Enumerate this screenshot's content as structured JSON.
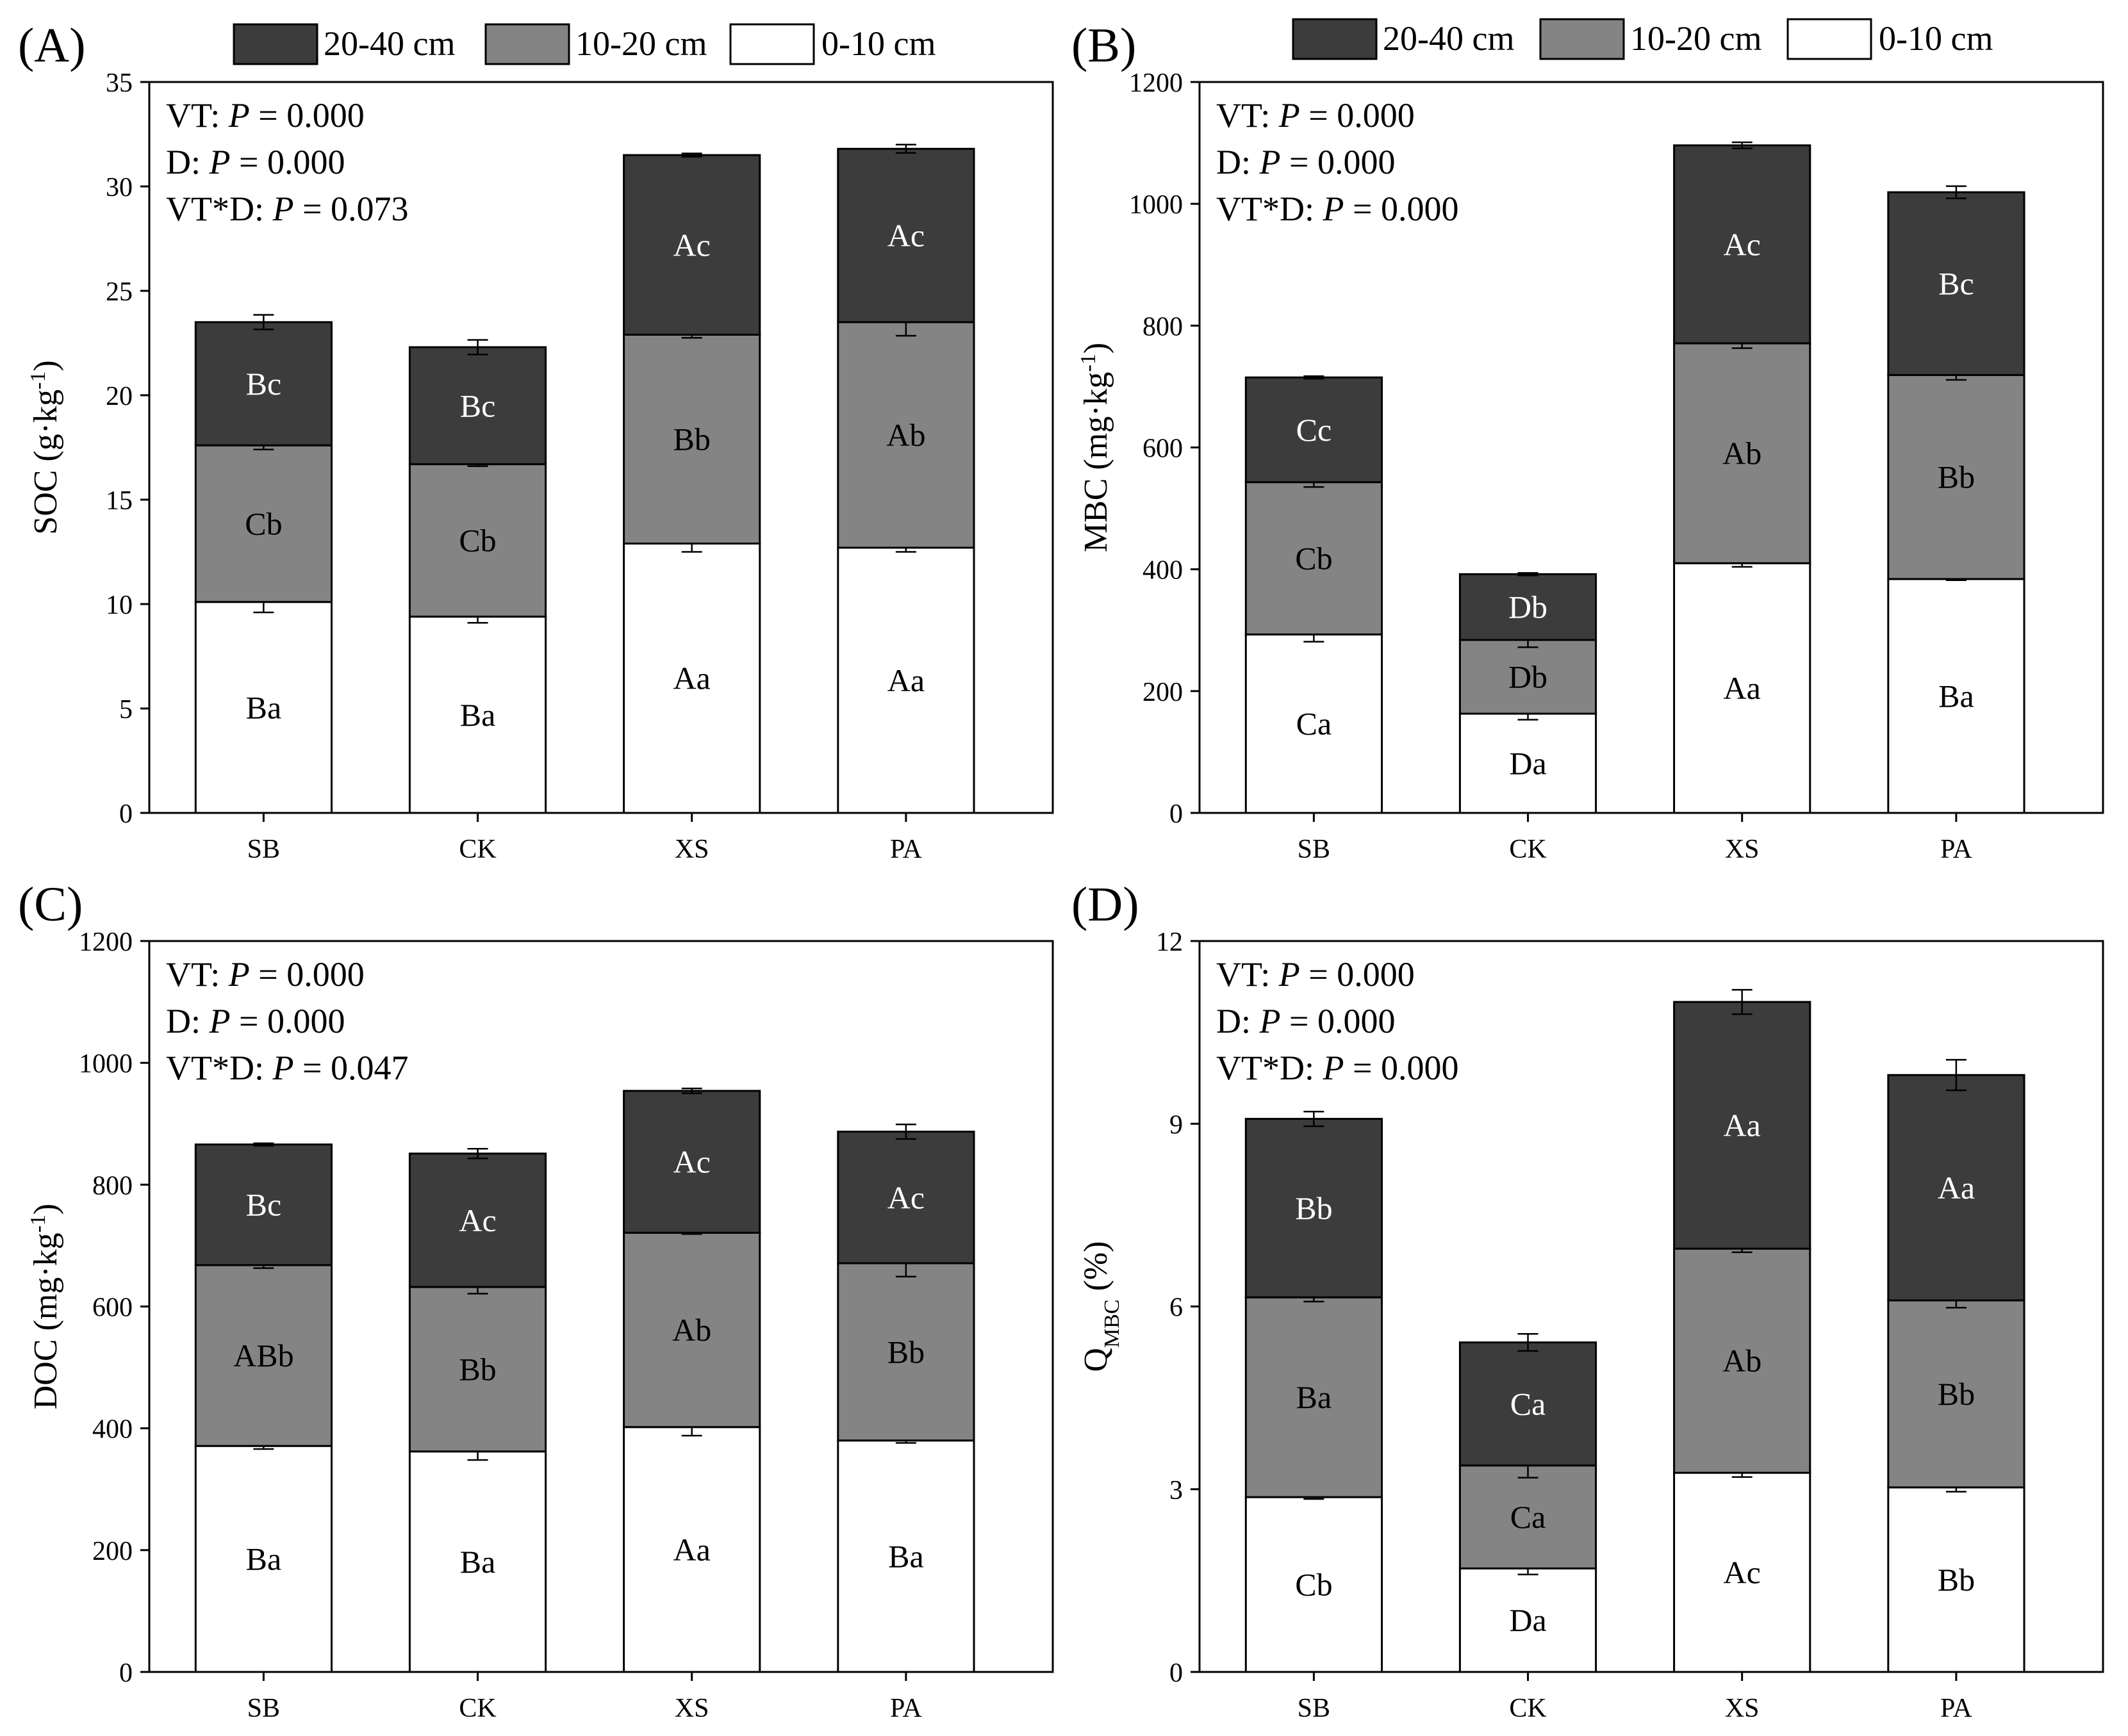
{
  "colors": {
    "deep": "#3c3c3c",
    "middle": "#848484",
    "surface": "#ffffff",
    "deep_text": "#ffffff",
    "middle_text": "#000000",
    "surface_text": "#000000"
  },
  "legend": {
    "entries": [
      {
        "key": "deep",
        "label": "20-40 cm"
      },
      {
        "key": "middle",
        "label": "10-20 cm"
      },
      {
        "key": "surface",
        "label": "0-10 cm"
      }
    ]
  },
  "chart_data": [
    {
      "panel": "(A)",
      "type": "bar",
      "stacked": true,
      "ylabel_main": "SOC (g·kg",
      "ylabel_sup": "-1",
      "ylabel_tail": ")",
      "ylim": [
        0,
        35
      ],
      "yticks": [
        0,
        5,
        10,
        15,
        20,
        25,
        30,
        35
      ],
      "categories": [
        "SB",
        "CK",
        "XS",
        "PA"
      ],
      "stats": [
        {
          "prefix": "VT: ",
          "italic": "P",
          "suffix": " = 0.000"
        },
        {
          "prefix": "D: ",
          "italic": "P",
          "suffix": " = 0.000"
        },
        {
          "prefix": "VT*D: ",
          "italic": "P",
          "suffix": " = 0.073"
        }
      ],
      "series": [
        {
          "name": "0-10 cm",
          "key": "surface",
          "values": [
            10.1,
            9.4,
            12.9,
            12.7
          ],
          "errors": [
            0.5,
            0.3,
            0.4,
            0.2
          ],
          "letters": [
            "Ba",
            "Ba",
            "Aa",
            "Aa"
          ]
        },
        {
          "name": "10-20 cm",
          "key": "middle",
          "values": [
            7.5,
            7.3,
            10.0,
            10.8
          ],
          "errors": [
            0.2,
            0.1,
            0.15,
            0.65
          ],
          "letters": [
            "Cb",
            "Cb",
            "Bb",
            "Ab"
          ]
        },
        {
          "name": "20-40 cm",
          "key": "deep",
          "values": [
            5.9,
            5.6,
            8.6,
            8.3
          ],
          "errors": [
            0.35,
            0.35,
            0.08,
            0.2
          ],
          "letters": [
            "Bc",
            "Bc",
            "Ac",
            "Ac"
          ]
        }
      ]
    },
    {
      "panel": "(B)",
      "type": "bar",
      "stacked": true,
      "ylabel_main": "MBC (mg·kg",
      "ylabel_sup": "-1",
      "ylabel_tail": ")",
      "ylim": [
        0,
        1200
      ],
      "yticks": [
        0,
        200,
        400,
        600,
        800,
        1000,
        1200
      ],
      "categories": [
        "SB",
        "CK",
        "XS",
        "PA"
      ],
      "stats": [
        {
          "prefix": "VT: ",
          "italic": "P",
          "suffix": " = 0.000"
        },
        {
          "prefix": "D: ",
          "italic": "P",
          "suffix": " = 0.000"
        },
        {
          "prefix": "VT*D: ",
          "italic": "P",
          "suffix": " = 0.000"
        }
      ],
      "series": [
        {
          "name": "0-10 cm",
          "key": "surface",
          "values": [
            293,
            163,
            410,
            384
          ],
          "errors": [
            12,
            10,
            6,
            2
          ],
          "letters": [
            "Ca",
            "Da",
            "Aa",
            "Ba"
          ]
        },
        {
          "name": "10-20 cm",
          "key": "middle",
          "values": [
            250,
            121,
            361,
            335
          ],
          "errors": [
            8,
            12,
            8,
            8
          ],
          "letters": [
            "Cb",
            "Db",
            "Ab",
            "Bb"
          ]
        },
        {
          "name": "20-40 cm",
          "key": "deep",
          "values": [
            172,
            108,
            325,
            300
          ],
          "errors": [
            2,
            2,
            5,
            10
          ],
          "letters": [
            "Cc",
            "Db",
            "Ac",
            "Bc"
          ]
        }
      ]
    },
    {
      "panel": "(C)",
      "type": "bar",
      "stacked": true,
      "ylabel_main": "DOC (mg·kg",
      "ylabel_sup": "-1",
      "ylabel_tail": ")",
      "ylim": [
        0,
        1200
      ],
      "yticks": [
        0,
        200,
        400,
        600,
        800,
        1000,
        1200
      ],
      "categories": [
        "SB",
        "CK",
        "XS",
        "PA"
      ],
      "stats": [
        {
          "prefix": "VT: ",
          "italic": "P",
          "suffix": " = 0.000"
        },
        {
          "prefix": "D: ",
          "italic": "P",
          "suffix": " = 0.000"
        },
        {
          "prefix": "VT*D: ",
          "italic": "P",
          "suffix": " = 0.047"
        }
      ],
      "series": [
        {
          "name": "0-10 cm",
          "key": "surface",
          "values": [
            371,
            362,
            402,
            380
          ],
          "errors": [
            5,
            14,
            14,
            4
          ],
          "letters": [
            "Ba",
            "Ba",
            "Aa",
            "Ba"
          ]
        },
        {
          "name": "10-20 cm",
          "key": "middle",
          "values": [
            297,
            270,
            319,
            291
          ],
          "errors": [
            5,
            11,
            2,
            22
          ],
          "letters": [
            "ABb",
            "Bb",
            "Ab",
            "Bb"
          ]
        },
        {
          "name": "20-40 cm",
          "key": "deep",
          "values": [
            198,
            219,
            233,
            216
          ],
          "errors": [
            2,
            8,
            4,
            12
          ],
          "letters": [
            "Bc",
            "Ac",
            "Ac",
            "Ac"
          ]
        }
      ]
    },
    {
      "panel": "(D)",
      "type": "bar",
      "stacked": true,
      "ylabel_main": "Q",
      "ylabel_sub": "MBC",
      "ylabel_tail": " (%)",
      "ylim": [
        0,
        12
      ],
      "yticks": [
        0,
        3,
        6,
        9,
        12
      ],
      "categories": [
        "SB",
        "CK",
        "XS",
        "PA"
      ],
      "stats": [
        {
          "prefix": "VT: ",
          "italic": "P",
          "suffix": " = 0.000"
        },
        {
          "prefix": "D: ",
          "italic": "P",
          "suffix": " = 0.000"
        },
        {
          "prefix": "VT*D: ",
          "italic": "P",
          "suffix": " = 0.000"
        }
      ],
      "series": [
        {
          "name": "0-10 cm",
          "key": "surface",
          "values": [
            2.87,
            1.7,
            3.27,
            3.03
          ],
          "errors": [
            0.03,
            0.1,
            0.07,
            0.07
          ],
          "letters": [
            "Cb",
            "Da",
            "Ac",
            "Bb"
          ]
        },
        {
          "name": "10-20 cm",
          "key": "middle",
          "values": [
            3.28,
            1.69,
            3.68,
            3.07
          ],
          "errors": [
            0.07,
            0.2,
            0.06,
            0.12
          ],
          "letters": [
            "Ba",
            "Ca",
            "Ab",
            "Bb"
          ]
        },
        {
          "name": "20-40 cm",
          "key": "deep",
          "values": [
            2.93,
            2.02,
            4.05,
            3.7
          ],
          "errors": [
            0.12,
            0.14,
            0.2,
            0.25
          ],
          "letters": [
            "Bb",
            "Ca",
            "Aa",
            "Aa"
          ]
        }
      ]
    }
  ]
}
